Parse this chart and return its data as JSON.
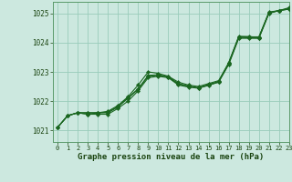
{
  "xlabel": "Graphe pression niveau de la mer (hPa)",
  "xlim": [
    -0.5,
    23
  ],
  "ylim": [
    1020.6,
    1025.4
  ],
  "yticks": [
    1021,
    1022,
    1023,
    1024,
    1025
  ],
  "xticks": [
    0,
    1,
    2,
    3,
    4,
    5,
    6,
    7,
    8,
    9,
    10,
    11,
    12,
    13,
    14,
    15,
    16,
    17,
    18,
    19,
    20,
    21,
    22,
    23
  ],
  "bg_color": "#cce8df",
  "grid_color": "#99ccbb",
  "line_color": "#1a6620",
  "marker_color": "#1a6620",
  "series": [
    [
      1021.1,
      1021.5,
      1021.6,
      1021.6,
      1021.6,
      1021.65,
      1021.85,
      1022.15,
      1022.55,
      1023.0,
      1022.95,
      1022.85,
      1022.65,
      1022.55,
      1022.5,
      1022.6,
      1022.7,
      1023.3,
      1024.2,
      1024.2,
      1024.2,
      1025.05,
      1025.1,
      1025.2
    ],
    [
      1021.1,
      1021.5,
      1021.6,
      1021.55,
      1021.55,
      1021.55,
      1021.75,
      1022.0,
      1022.35,
      1022.8,
      1022.85,
      1022.8,
      1022.55,
      1022.48,
      1022.44,
      1022.54,
      1022.65,
      1023.25,
      1024.15,
      1024.15,
      1024.15,
      1025.0,
      1025.1,
      1025.15
    ],
    [
      1021.1,
      1021.5,
      1021.6,
      1021.55,
      1021.6,
      1021.6,
      1021.8,
      1022.1,
      1022.4,
      1022.85,
      1022.88,
      1022.82,
      1022.58,
      1022.5,
      1022.45,
      1022.55,
      1022.65,
      1023.28,
      1024.18,
      1024.17,
      1024.16,
      1025.02,
      1025.1,
      1025.15
    ],
    [
      1021.1,
      1021.5,
      1021.6,
      1021.6,
      1021.6,
      1021.62,
      1021.82,
      1022.12,
      1022.42,
      1022.88,
      1022.9,
      1022.84,
      1022.6,
      1022.52,
      1022.46,
      1022.57,
      1022.67,
      1023.32,
      1024.22,
      1024.21,
      1024.18,
      1025.03,
      1025.1,
      1025.17
    ]
  ]
}
